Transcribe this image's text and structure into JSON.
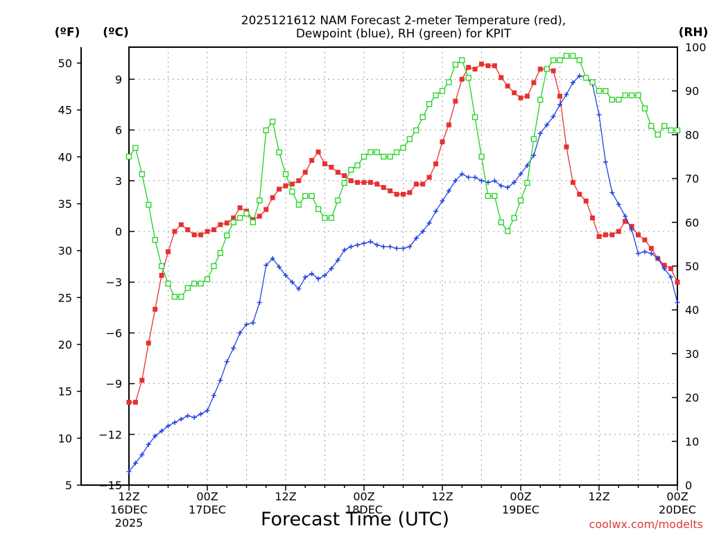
{
  "chart_data": {
    "type": "line",
    "title_line1": "2025121612 NAM Forecast 2-meter Temperature (red),",
    "title_line2": "Dewpoint (blue), RH (green) for KPIT",
    "xlabel": "Forecast Time (UTC)",
    "left_axis_f_label": "(ºF)",
    "left_axis_c_label": "(ºC)",
    "right_axis_label": "(RH)",
    "credit": "coolwx.com/modelts",
    "grid": true,
    "x_range_hours": [
      0,
      84
    ],
    "x_ticks": [
      {
        "hour": 0,
        "label": "12Z",
        "date": "16DEC",
        "year": "2025"
      },
      {
        "hour": 12,
        "label": "00Z",
        "date": "17DEC",
        "year": ""
      },
      {
        "hour": 24,
        "label": "12Z",
        "date": "",
        "year": ""
      },
      {
        "hour": 36,
        "label": "00Z",
        "date": "18DEC",
        "year": ""
      },
      {
        "hour": 48,
        "label": "12Z",
        "date": "",
        "year": ""
      },
      {
        "hour": 60,
        "label": "00Z",
        "date": "19DEC",
        "year": ""
      },
      {
        "hour": 72,
        "label": "12Z",
        "date": "",
        "year": ""
      },
      {
        "hour": 84,
        "label": "00Z",
        "date": "20DEC",
        "year": ""
      }
    ],
    "temp_f_range": [
      5,
      51.7
    ],
    "temp_f_ticks": [
      "5",
      "10",
      "15",
      "20",
      "25",
      "30",
      "35",
      "40",
      "45",
      "50"
    ],
    "temp_c_range": [
      -15,
      10.9
    ],
    "temp_c_ticks": [
      "−15",
      "−12",
      "−9",
      "−6",
      "−3",
      "0",
      "3",
      "6",
      "9"
    ],
    "rh_range": [
      0,
      100
    ],
    "rh_ticks": [
      "0",
      "10",
      "20",
      "30",
      "40",
      "50",
      "60",
      "70",
      "80",
      "90",
      "100"
    ],
    "series": [
      {
        "name": "Temperature",
        "unit": "C",
        "color": "#e83030",
        "marker": "filled-square",
        "x": [
          0,
          1,
          2,
          3,
          4,
          5,
          6,
          7,
          8,
          9,
          10,
          11,
          12,
          13,
          14,
          15,
          16,
          17,
          18,
          19,
          20,
          21,
          22,
          23,
          24,
          25,
          26,
          27,
          28,
          29,
          30,
          31,
          32,
          33,
          34,
          35,
          36,
          37,
          38,
          39,
          40,
          41,
          42,
          43,
          44,
          45,
          46,
          47,
          48,
          49,
          50,
          51,
          52,
          53,
          54,
          55,
          56,
          57,
          58,
          59,
          60,
          61,
          62,
          63,
          64,
          65,
          66,
          67,
          68,
          69,
          70,
          71,
          72,
          73,
          74,
          75,
          76,
          77,
          78,
          79,
          80,
          81,
          82,
          83,
          84
        ],
        "values": [
          -10.1,
          -10.1,
          -8.8,
          -6.6,
          -4.6,
          -2.6,
          -1.2,
          0,
          0.4,
          0.1,
          -0.2,
          -0.2,
          0.0,
          0.1,
          0.4,
          0.5,
          0.8,
          1.4,
          1.2,
          0.7,
          0.9,
          1.3,
          2.0,
          2.5,
          2.7,
          2.8,
          3.0,
          3.5,
          4.2,
          4.7,
          4.0,
          3.8,
          3.5,
          3.3,
          3.0,
          2.9,
          2.9,
          2.9,
          2.8,
          2.6,
          2.4,
          2.2,
          2.2,
          2.3,
          2.8,
          2.8,
          3.2,
          4.0,
          5.3,
          6.3,
          7.7,
          9.0,
          9.7,
          9.6,
          9.9,
          9.8,
          9.8,
          9.1,
          8.6,
          8.2,
          7.9,
          8.0,
          8.8,
          9.6,
          9.6,
          9.5,
          8.0,
          5.0,
          2.9,
          2.2,
          1.8,
          0.8,
          -0.3,
          -0.2,
          -0.2,
          0.0,
          0.6,
          0.3,
          -0.2,
          -0.5,
          -1.0,
          -1.6,
          -2.0,
          -2.2,
          -3.0
        ]
      },
      {
        "name": "Dewpoint",
        "unit": "C",
        "color": "#2040e0",
        "marker": "plus",
        "x": [
          0,
          1,
          2,
          3,
          4,
          5,
          6,
          7,
          8,
          9,
          10,
          11,
          12,
          13,
          14,
          15,
          16,
          17,
          18,
          19,
          20,
          21,
          22,
          23,
          24,
          25,
          26,
          27,
          28,
          29,
          30,
          31,
          32,
          33,
          34,
          35,
          36,
          37,
          38,
          39,
          40,
          41,
          42,
          43,
          44,
          45,
          46,
          47,
          48,
          49,
          50,
          51,
          52,
          53,
          54,
          55,
          56,
          57,
          58,
          59,
          60,
          61,
          62,
          63,
          64,
          65,
          66,
          67,
          68,
          69,
          70,
          71,
          72,
          73,
          74,
          75,
          76,
          77,
          78,
          79,
          80,
          81,
          82,
          83,
          84
        ],
        "values": [
          -14.2,
          -13.7,
          -13.2,
          -12.6,
          -12.1,
          -11.8,
          -11.5,
          -11.3,
          -11.1,
          -10.9,
          -11.0,
          -10.8,
          -10.6,
          -9.7,
          -8.8,
          -7.7,
          -6.9,
          -6.0,
          -5.5,
          -5.4,
          -4.2,
          -2.0,
          -1.6,
          -2.1,
          -2.6,
          -3.0,
          -3.4,
          -2.7,
          -2.5,
          -2.8,
          -2.6,
          -2.2,
          -1.7,
          -1.1,
          -0.9,
          -0.8,
          -0.7,
          -0.6,
          -0.8,
          -0.9,
          -0.9,
          -1.0,
          -1.0,
          -0.9,
          -0.4,
          0.0,
          0.5,
          1.2,
          1.8,
          2.4,
          3.0,
          3.4,
          3.2,
          3.2,
          3.0,
          2.9,
          3.0,
          2.7,
          2.6,
          2.9,
          3.4,
          3.9,
          4.5,
          5.8,
          6.3,
          6.8,
          7.5,
          8.1,
          8.8,
          9.2,
          9.1,
          8.7,
          6.9,
          4.1,
          2.3,
          1.6,
          0.9,
          0.1,
          -1.3,
          -1.2,
          -1.3,
          -1.6,
          -2.2,
          -2.7,
          -4.2
        ]
      },
      {
        "name": "Relative Humidity",
        "unit": "%",
        "color": "#20d020",
        "marker": "open-square",
        "x": [
          0,
          1,
          2,
          3,
          4,
          5,
          6,
          7,
          8,
          9,
          10,
          11,
          12,
          13,
          14,
          15,
          16,
          17,
          18,
          19,
          20,
          21,
          22,
          23,
          24,
          25,
          26,
          27,
          28,
          29,
          30,
          31,
          32,
          33,
          34,
          35,
          36,
          37,
          38,
          39,
          40,
          41,
          42,
          43,
          44,
          45,
          46,
          47,
          48,
          49,
          50,
          51,
          52,
          53,
          54,
          55,
          56,
          57,
          58,
          59,
          60,
          61,
          62,
          63,
          64,
          65,
          66,
          67,
          68,
          69,
          70,
          71,
          72,
          73,
          74,
          75,
          76,
          77,
          78,
          79,
          80,
          81,
          82,
          83,
          84
        ],
        "values": [
          75,
          77,
          71,
          64,
          56,
          50,
          46,
          43,
          43,
          45,
          46,
          46,
          47,
          50,
          53,
          57,
          60,
          61,
          62,
          60,
          65,
          81,
          83,
          76,
          71,
          67,
          64,
          66,
          66,
          63,
          61,
          61,
          65,
          69,
          72,
          73,
          75,
          76,
          76,
          75,
          75,
          76,
          77,
          79,
          81,
          84,
          87,
          89,
          90,
          92,
          96,
          97,
          93,
          84,
          75,
          66,
          66,
          60,
          58,
          61,
          65,
          69,
          79,
          88,
          95,
          97,
          97,
          98,
          98,
          97,
          93,
          92,
          90,
          90,
          88,
          88,
          89,
          89,
          89,
          86,
          82,
          80,
          82,
          81,
          81
        ]
      }
    ]
  }
}
